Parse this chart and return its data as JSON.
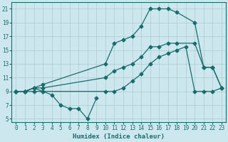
{
  "xlabel": "Humidex (Indice chaleur)",
  "bg_color": "#cce8ee",
  "grid_color": "#aacccc",
  "line_color": "#1a6b6b",
  "xlim": [
    -0.5,
    23.5
  ],
  "ylim": [
    4.5,
    22.0
  ],
  "xticks": [
    0,
    1,
    2,
    3,
    4,
    5,
    6,
    7,
    8,
    9,
    10,
    11,
    12,
    13,
    14,
    15,
    16,
    17,
    18,
    19,
    20,
    21,
    22,
    23
  ],
  "yticks": [
    5,
    7,
    9,
    11,
    13,
    15,
    17,
    19,
    21
  ],
  "line1_x": [
    0,
    1,
    2,
    3,
    10,
    11,
    12,
    13,
    14,
    15,
    16,
    17,
    18,
    20,
    21,
    22,
    23
  ],
  "line1_y": [
    9,
    9,
    9.5,
    10,
    13,
    16,
    16.5,
    17,
    18.5,
    21,
    21,
    21,
    20.5,
    19,
    12.5,
    12.5,
    9.5
  ],
  "line2_x": [
    0,
    1,
    2,
    3,
    10,
    11,
    12,
    13,
    14,
    15,
    16,
    17,
    18,
    20,
    21,
    22,
    23
  ],
  "line2_y": [
    9,
    9,
    9.5,
    9.5,
    11,
    12,
    12.5,
    13,
    14,
    15.5,
    15.5,
    16,
    16,
    16,
    12.5,
    12.5,
    9.5
  ],
  "line3_x": [
    0,
    1,
    2,
    3,
    10,
    11,
    12,
    13,
    14,
    15,
    16,
    17,
    18,
    19,
    20,
    21,
    22,
    23
  ],
  "line3_y": [
    9,
    9,
    9,
    9,
    9,
    9,
    9.5,
    10.5,
    11.5,
    13,
    14,
    14.5,
    15,
    15.5,
    9,
    9,
    9,
    9.5
  ],
  "line4_x": [
    0,
    1,
    2,
    3,
    4,
    5,
    6,
    7,
    8,
    9
  ],
  "line4_y": [
    9,
    9,
    9.5,
    9,
    8.5,
    7,
    6.5,
    6.5,
    5,
    8
  ],
  "tick_fontsize": 5.5,
  "xlabel_fontsize": 6.5
}
